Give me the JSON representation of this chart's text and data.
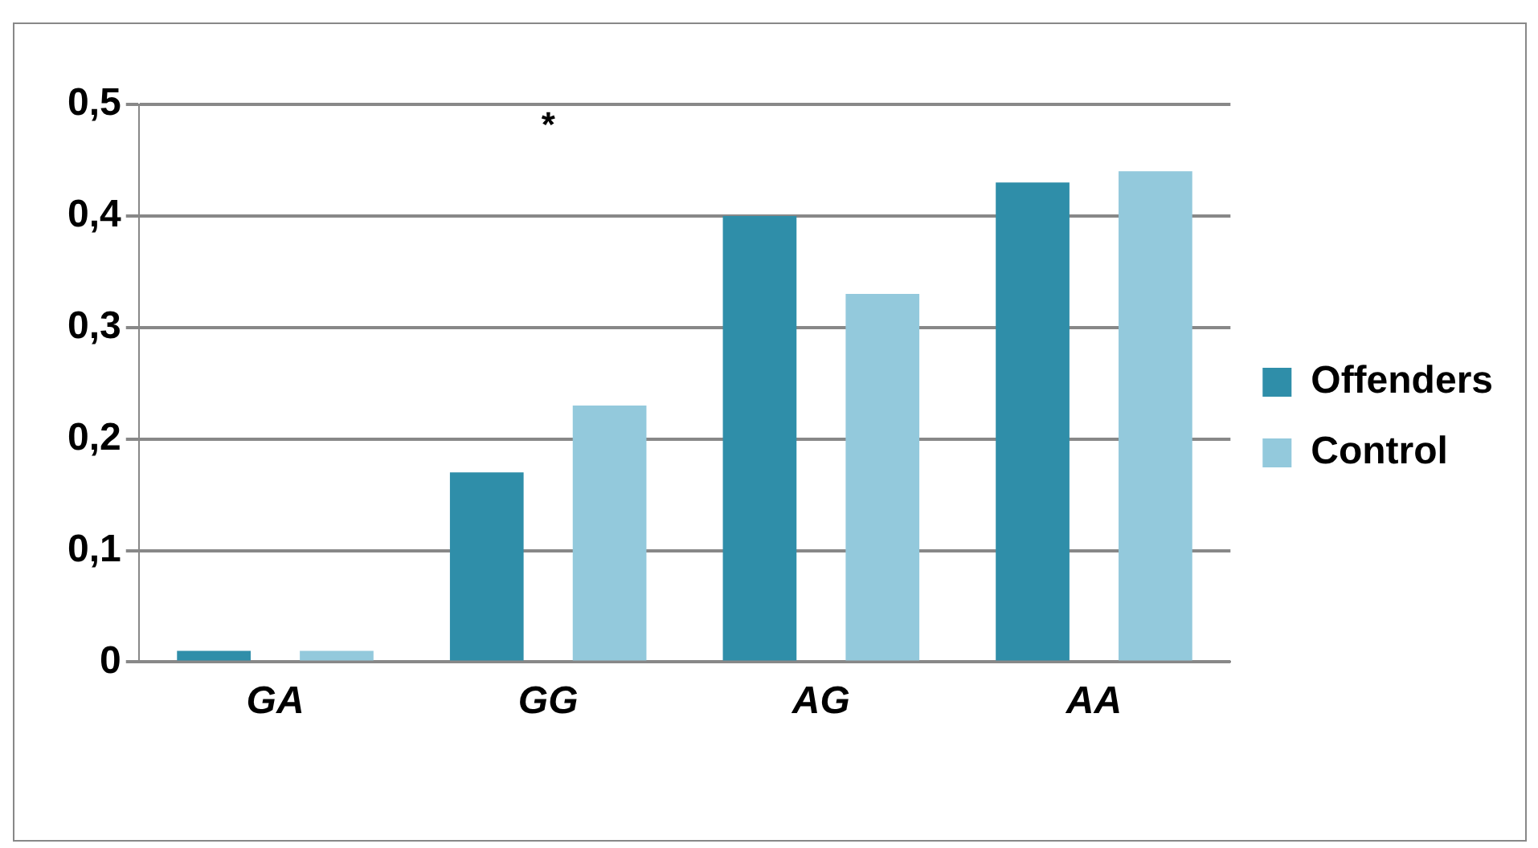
{
  "chart_data": {
    "type": "bar",
    "categories": [
      "GA",
      "GG",
      "AG",
      "AA"
    ],
    "series": [
      {
        "name": "Offenders",
        "color": "#2f8ea9",
        "values": [
          0.01,
          0.17,
          0.4,
          0.43
        ]
      },
      {
        "name": "Control",
        "color": "#93c9dc",
        "values": [
          0.01,
          0.23,
          0.33,
          0.44
        ]
      }
    ],
    "ylim": [
      0,
      0.5
    ],
    "yticks": [
      {
        "value": 0,
        "label": "0"
      },
      {
        "value": 0.1,
        "label": "0,1"
      },
      {
        "value": 0.2,
        "label": "0,2"
      },
      {
        "value": 0.3,
        "label": "0,3"
      },
      {
        "value": 0.4,
        "label": "0,4"
      },
      {
        "value": 0.5,
        "label": "0,5"
      }
    ],
    "grid": "y",
    "legend": "right",
    "annotations": [
      "*"
    ]
  }
}
